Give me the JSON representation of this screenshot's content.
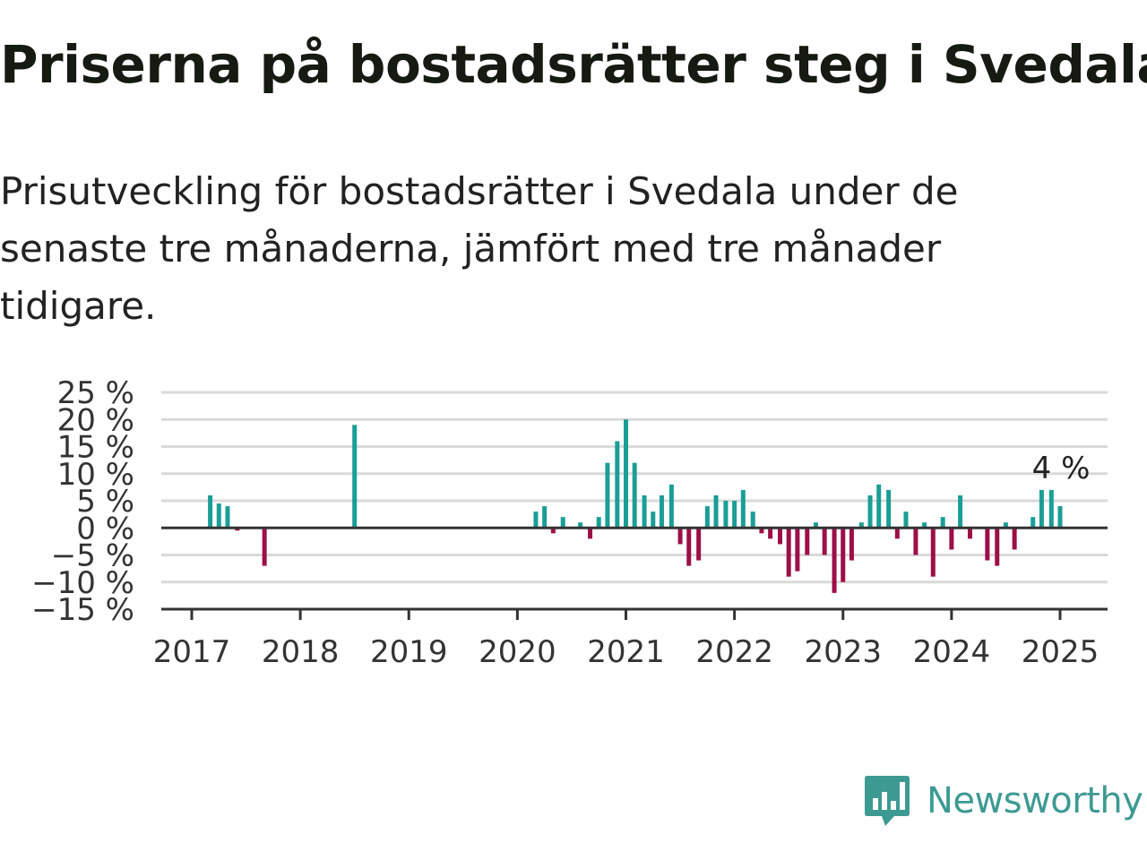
{
  "title": "Priserna på bostadsrätter steg i Svedala",
  "subtitle": "Prisutveckling för bostadsrätter i Svedala under de senaste tre månaderna, jämfört med tre månader tidigare.",
  "brand": {
    "name": "Newsworthy",
    "color": "#3d9a93",
    "icon": "newsworthy-logo-icon"
  },
  "colors": {
    "positive": "#1a9e96",
    "negative": "#9c0f48",
    "grid": "#d9d9d9",
    "axis": "#333333"
  },
  "chart_data": {
    "type": "bar",
    "ylim": [
      -15,
      25
    ],
    "y_ticks": [
      25,
      20,
      15,
      10,
      5,
      0,
      -5,
      -10,
      -15
    ],
    "y_tick_labels": [
      "25 %",
      "20 %",
      "15 %",
      "10 %",
      "5 %",
      "0 %",
      "−5 %",
      "−10 %",
      "−15 %"
    ],
    "x_ticks": [
      2017,
      2018,
      2019,
      2020,
      2021,
      2022,
      2023,
      2024,
      2025
    ],
    "x_tick_labels": [
      "2017",
      "2018",
      "2019",
      "2020",
      "2021",
      "2022",
      "2023",
      "2024",
      "2025"
    ],
    "grid": true,
    "annotation": {
      "label": "4 %",
      "x": 2025.0,
      "value": 4
    },
    "series": [
      {
        "x": [
          2017.17,
          2017.25,
          2017.33,
          2017.42,
          2017.67,
          2018.5,
          2020.17,
          2020.25,
          2020.33,
          2020.42,
          2020.58,
          2020.67,
          2020.75,
          2020.83,
          2020.92,
          2021.0,
          2021.08,
          2021.17,
          2021.25,
          2021.33,
          2021.42,
          2021.5,
          2021.58,
          2021.67,
          2021.75,
          2021.83,
          2021.92,
          2022.0,
          2022.08,
          2022.17,
          2022.25,
          2022.33,
          2022.42,
          2022.5,
          2022.58,
          2022.67,
          2022.75,
          2022.83,
          2022.92,
          2023.0,
          2023.08,
          2023.17,
          2023.25,
          2023.33,
          2023.42,
          2023.5,
          2023.58,
          2023.67,
          2023.75,
          2023.83,
          2023.92,
          2024.0,
          2024.08,
          2024.17,
          2024.33,
          2024.42,
          2024.5,
          2024.58,
          2024.75,
          2024.83,
          2024.92,
          2025.0
        ],
        "values": [
          6,
          4.5,
          4,
          -0.5,
          -7,
          19,
          3,
          4,
          -1,
          2,
          1,
          -2,
          2,
          12,
          16,
          20,
          12,
          6,
          3,
          6,
          8,
          -3,
          -7,
          -6,
          4,
          6,
          5,
          5,
          7,
          3,
          -1,
          -2,
          -3,
          -9,
          -8,
          -5,
          1,
          -5,
          -12,
          -10,
          -6,
          1,
          6,
          8,
          7,
          -2,
          3,
          -5,
          1,
          -9,
          2,
          -4,
          6,
          -2,
          -6,
          -7,
          1,
          -4,
          2,
          7,
          7,
          4
        ]
      }
    ]
  }
}
